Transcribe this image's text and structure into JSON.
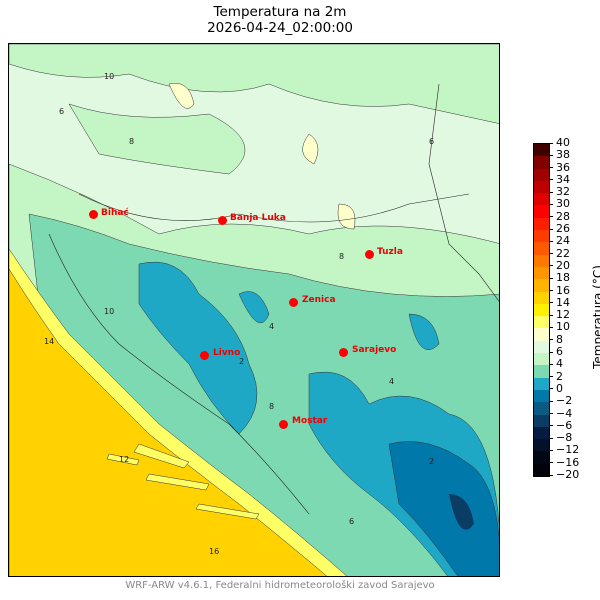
{
  "title": "Temperatura na 2m",
  "subtitle": "2026-04-24_02:00:00",
  "colorbar": {
    "label": "Temperatura (°C)",
    "ticks": [
      "−20",
      "−16",
      "−12",
      "−8",
      "−6",
      "−4",
      "−2",
      "0",
      "2",
      "4",
      "6",
      "8",
      "10",
      "12",
      "14",
      "16",
      "18",
      "20",
      "22",
      "24",
      "26",
      "28",
      "30",
      "32",
      "34",
      "36",
      "38",
      "40"
    ],
    "colors": [
      "#02030a",
      "#030613",
      "#05112a",
      "#071a3f",
      "#0b3c63",
      "#0a5a82",
      "#0079aa",
      "#1ea8c6",
      "#7dd9b2",
      "#c4f5c4",
      "#e1f8e1",
      "#ffffcc",
      "#ffff66",
      "#fff000",
      "#ffd200",
      "#ffb400",
      "#ff9600",
      "#ff7800",
      "#ff5a00",
      "#ff3c00",
      "#ff1e00",
      "#ff0000",
      "#e00000",
      "#c00000",
      "#a00000",
      "#800000",
      "#400000"
    ]
  },
  "cities": [
    {
      "name": "Bihać"
    },
    {
      "name": "Banja Luka"
    },
    {
      "name": "Tuzla"
    },
    {
      "name": "Zenica"
    },
    {
      "name": "Livno"
    },
    {
      "name": "Sarajevo"
    },
    {
      "name": "Mostar"
    }
  ],
  "contour_labels": [
    "6",
    "8",
    "10",
    "6",
    "8",
    "4",
    "2",
    "4",
    "2",
    "14",
    "10",
    "16",
    "12",
    "8",
    "6"
  ],
  "footer": "WRF-ARW v4.6.1, Federalni hidrometeorološki zavod Sarajevo"
}
